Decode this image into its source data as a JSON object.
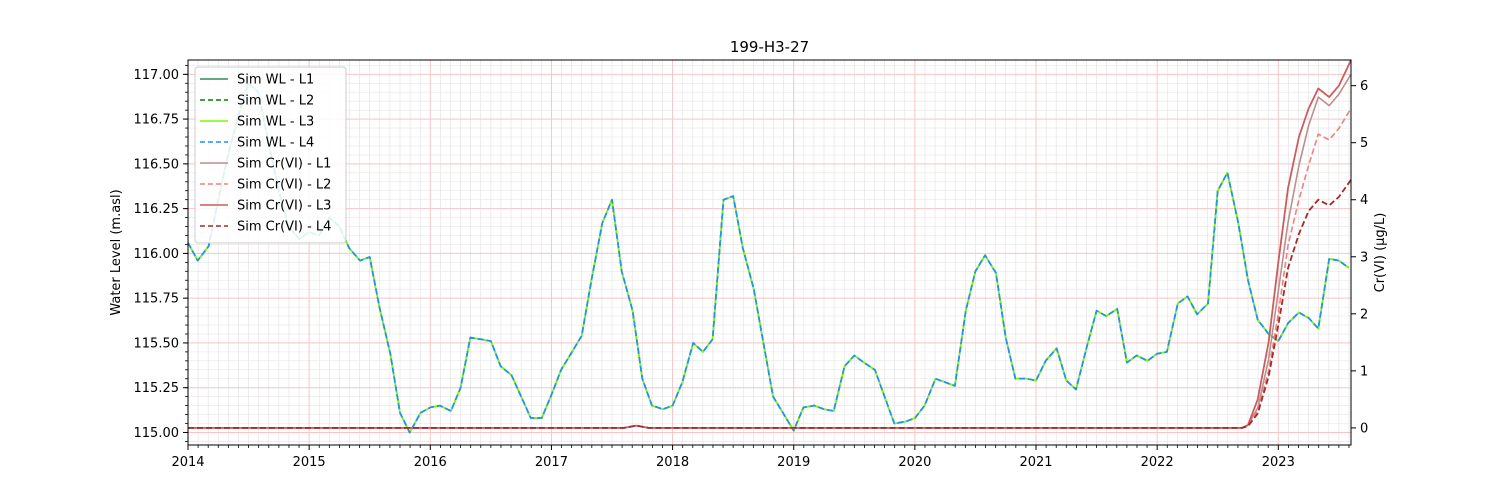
{
  "chart_data": {
    "type": "line",
    "title": "199-H3-27",
    "ylabel": "Water Level (m.asl)",
    "ylabel_right": "Cr(VI) (µg/L)",
    "xlim": [
      2014.0,
      2023.6
    ],
    "ylim": [
      114.93,
      117.08
    ],
    "ylim_right": [
      -0.3,
      6.45
    ],
    "x_ticks": [
      2014,
      2015,
      2016,
      2017,
      2018,
      2019,
      2020,
      2021,
      2022,
      2023
    ],
    "x_tick_labels": [
      "2014",
      "2015",
      "2016",
      "2017",
      "2018",
      "2019",
      "2020",
      "2021",
      "2022",
      "2023"
    ],
    "y_ticks": [
      115.0,
      115.25,
      115.5,
      115.75,
      116.0,
      116.25,
      116.5,
      116.75,
      117.0
    ],
    "y_tick_labels": [
      "115.00",
      "115.25",
      "115.50",
      "115.75",
      "116.00",
      "116.25",
      "116.50",
      "116.75",
      "117.00"
    ],
    "y_right_ticks": [
      0,
      1,
      2,
      3,
      4,
      5,
      6
    ],
    "y_right_tick_labels": [
      "0",
      "1",
      "2",
      "3",
      "4",
      "5",
      "6"
    ],
    "grid": true,
    "legend_position": "upper-left",
    "wl_points": [
      [
        2014.0,
        116.06
      ],
      [
        2014.08,
        115.96
      ],
      [
        2014.17,
        116.04
      ],
      [
        2014.25,
        116.3
      ],
      [
        2014.33,
        116.55
      ],
      [
        2014.42,
        116.78
      ],
      [
        2014.5,
        116.95
      ],
      [
        2014.58,
        116.9
      ],
      [
        2014.67,
        116.6
      ],
      [
        2014.75,
        116.35
      ],
      [
        2014.83,
        116.15
      ],
      [
        2014.92,
        116.08
      ],
      [
        2015.0,
        116.12
      ],
      [
        2015.08,
        116.1
      ],
      [
        2015.17,
        116.2
      ],
      [
        2015.25,
        116.15
      ],
      [
        2015.33,
        116.03
      ],
      [
        2015.42,
        115.96
      ],
      [
        2015.5,
        115.98
      ],
      [
        2015.58,
        115.7
      ],
      [
        2015.67,
        115.44
      ],
      [
        2015.75,
        115.11
      ],
      [
        2015.83,
        115.0
      ],
      [
        2015.92,
        115.11
      ],
      [
        2016.0,
        115.14
      ],
      [
        2016.08,
        115.15
      ],
      [
        2016.17,
        115.12
      ],
      [
        2016.25,
        115.25
      ],
      [
        2016.33,
        115.53
      ],
      [
        2016.42,
        115.52
      ],
      [
        2016.5,
        115.51
      ],
      [
        2016.58,
        115.37
      ],
      [
        2016.67,
        115.32
      ],
      [
        2016.75,
        115.2
      ],
      [
        2016.83,
        115.08
      ],
      [
        2016.92,
        115.08
      ],
      [
        2017.0,
        115.21
      ],
      [
        2017.08,
        115.35
      ],
      [
        2017.17,
        115.45
      ],
      [
        2017.25,
        115.54
      ],
      [
        2017.33,
        115.85
      ],
      [
        2017.42,
        116.17
      ],
      [
        2017.5,
        116.3
      ],
      [
        2017.58,
        115.9
      ],
      [
        2017.67,
        115.68
      ],
      [
        2017.75,
        115.3
      ],
      [
        2017.83,
        115.15
      ],
      [
        2017.92,
        115.13
      ],
      [
        2018.0,
        115.15
      ],
      [
        2018.08,
        115.28
      ],
      [
        2018.17,
        115.5
      ],
      [
        2018.25,
        115.45
      ],
      [
        2018.33,
        115.52
      ],
      [
        2018.42,
        116.3
      ],
      [
        2018.5,
        116.32
      ],
      [
        2018.58,
        116.03
      ],
      [
        2018.67,
        115.8
      ],
      [
        2018.75,
        115.5
      ],
      [
        2018.83,
        115.2
      ],
      [
        2018.92,
        115.1
      ],
      [
        2019.0,
        115.01
      ],
      [
        2019.08,
        115.14
      ],
      [
        2019.17,
        115.15
      ],
      [
        2019.25,
        115.13
      ],
      [
        2019.33,
        115.12
      ],
      [
        2019.42,
        115.37
      ],
      [
        2019.5,
        115.43
      ],
      [
        2019.58,
        115.39
      ],
      [
        2019.67,
        115.35
      ],
      [
        2019.75,
        115.2
      ],
      [
        2019.83,
        115.05
      ],
      [
        2019.92,
        115.06
      ],
      [
        2020.0,
        115.08
      ],
      [
        2020.08,
        115.15
      ],
      [
        2020.17,
        115.3
      ],
      [
        2020.25,
        115.28
      ],
      [
        2020.33,
        115.26
      ],
      [
        2020.42,
        115.68
      ],
      [
        2020.5,
        115.9
      ],
      [
        2020.58,
        115.99
      ],
      [
        2020.67,
        115.89
      ],
      [
        2020.75,
        115.53
      ],
      [
        2020.83,
        115.3
      ],
      [
        2020.92,
        115.3
      ],
      [
        2021.0,
        115.29
      ],
      [
        2021.08,
        115.4
      ],
      [
        2021.17,
        115.47
      ],
      [
        2021.25,
        115.29
      ],
      [
        2021.33,
        115.24
      ],
      [
        2021.42,
        115.48
      ],
      [
        2021.5,
        115.68
      ],
      [
        2021.58,
        115.65
      ],
      [
        2021.67,
        115.69
      ],
      [
        2021.75,
        115.39
      ],
      [
        2021.83,
        115.43
      ],
      [
        2021.92,
        115.4
      ],
      [
        2022.0,
        115.44
      ],
      [
        2022.08,
        115.45
      ],
      [
        2022.17,
        115.72
      ],
      [
        2022.25,
        115.76
      ],
      [
        2022.33,
        115.66
      ],
      [
        2022.42,
        115.72
      ],
      [
        2022.5,
        116.35
      ],
      [
        2022.58,
        116.45
      ],
      [
        2022.67,
        116.17
      ],
      [
        2022.75,
        115.85
      ],
      [
        2022.83,
        115.63
      ],
      [
        2022.92,
        115.55
      ],
      [
        2023.0,
        115.51
      ],
      [
        2023.08,
        115.61
      ],
      [
        2023.17,
        115.67
      ],
      [
        2023.25,
        115.64
      ],
      [
        2023.33,
        115.58
      ],
      [
        2023.42,
        115.97
      ],
      [
        2023.5,
        115.96
      ],
      [
        2023.58,
        115.92
      ]
    ],
    "series": [
      {
        "name": "Sim WL - L1",
        "axis": "left",
        "color": "#2e8b57",
        "dash": "solid",
        "width": 1.6,
        "base": "wl_points"
      },
      {
        "name": "Sim WL - L2",
        "axis": "left",
        "color": "#008000",
        "dash": "dashed",
        "width": 1.6,
        "base": "wl_points"
      },
      {
        "name": "Sim WL - L3",
        "axis": "left",
        "color": "#7cfc00",
        "dash": "solid",
        "width": 1.6,
        "base": "wl_points"
      },
      {
        "name": "Sim WL - L4",
        "axis": "left",
        "color": "#1e90ff",
        "dash": "dashed",
        "width": 1.6,
        "base": "wl_points"
      },
      {
        "name": "Sim Cr(VI) - L1",
        "axis": "right",
        "color": "#bc8f8f",
        "dash": "solid",
        "width": 1.6,
        "points": [
          [
            2014.0,
            0
          ],
          [
            2017.6,
            0
          ],
          [
            2017.7,
            0.04
          ],
          [
            2017.8,
            0
          ],
          [
            2022.7,
            0
          ],
          [
            2022.75,
            0.05
          ],
          [
            2022.83,
            0.35
          ],
          [
            2022.92,
            1.2
          ],
          [
            2023.0,
            2.4
          ],
          [
            2023.08,
            3.6
          ],
          [
            2023.17,
            4.6
          ],
          [
            2023.25,
            5.3
          ],
          [
            2023.33,
            5.8
          ],
          [
            2023.42,
            5.65
          ],
          [
            2023.5,
            5.85
          ],
          [
            2023.6,
            6.2
          ]
        ]
      },
      {
        "name": "Sim Cr(VI) - L2",
        "axis": "right",
        "color": "#f08080",
        "dash": "dashed",
        "width": 1.6,
        "points": [
          [
            2014.0,
            0
          ],
          [
            2017.6,
            0
          ],
          [
            2017.7,
            0.04
          ],
          [
            2017.8,
            0
          ],
          [
            2022.7,
            0
          ],
          [
            2022.75,
            0.05
          ],
          [
            2022.83,
            0.3
          ],
          [
            2022.92,
            1.0
          ],
          [
            2023.0,
            2.0
          ],
          [
            2023.08,
            3.2
          ],
          [
            2023.17,
            4.0
          ],
          [
            2023.25,
            4.6
          ],
          [
            2023.33,
            5.15
          ],
          [
            2023.42,
            5.05
          ],
          [
            2023.5,
            5.25
          ],
          [
            2023.6,
            5.6
          ]
        ]
      },
      {
        "name": "Sim Cr(VI) - L3",
        "axis": "right",
        "color": "#cd5c5c",
        "dash": "solid",
        "width": 1.8,
        "points": [
          [
            2014.0,
            0
          ],
          [
            2017.6,
            0
          ],
          [
            2017.7,
            0.04
          ],
          [
            2017.8,
            0
          ],
          [
            2022.7,
            0
          ],
          [
            2022.75,
            0.05
          ],
          [
            2022.83,
            0.5
          ],
          [
            2022.92,
            1.5
          ],
          [
            2023.0,
            2.9
          ],
          [
            2023.08,
            4.2
          ],
          [
            2023.17,
            5.1
          ],
          [
            2023.25,
            5.6
          ],
          [
            2023.33,
            5.95
          ],
          [
            2023.42,
            5.8
          ],
          [
            2023.5,
            6.0
          ],
          [
            2023.6,
            6.45
          ]
        ]
      },
      {
        "name": "Sim Cr(VI) - L4",
        "axis": "right",
        "color": "#a52a2a",
        "dash": "dashed",
        "width": 1.8,
        "points": [
          [
            2014.0,
            0
          ],
          [
            2017.6,
            0
          ],
          [
            2017.7,
            0.04
          ],
          [
            2017.8,
            0
          ],
          [
            2022.7,
            0
          ],
          [
            2022.75,
            0.03
          ],
          [
            2022.83,
            0.25
          ],
          [
            2022.92,
            0.9
          ],
          [
            2023.0,
            1.8
          ],
          [
            2023.08,
            2.8
          ],
          [
            2023.17,
            3.4
          ],
          [
            2023.25,
            3.8
          ],
          [
            2023.33,
            4.0
          ],
          [
            2023.42,
            3.9
          ],
          [
            2023.5,
            4.05
          ],
          [
            2023.6,
            4.35
          ]
        ]
      }
    ]
  }
}
